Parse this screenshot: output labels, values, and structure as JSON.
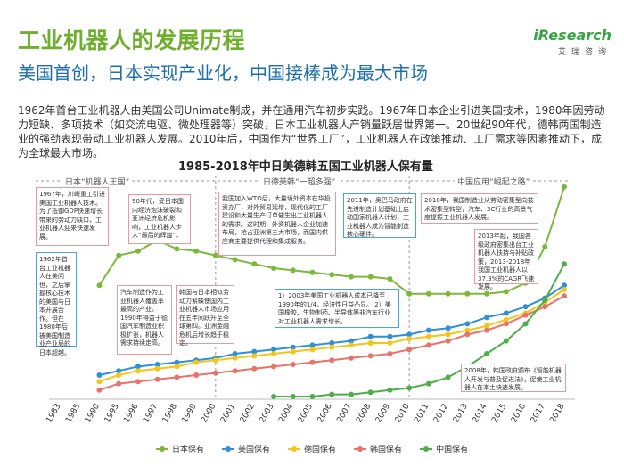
{
  "title": "工业机器人的发展历程",
  "subtitle": "美国首创，日本实现产业化，中国接棒成为最大市场",
  "intro": "1962年首台工业机器人由美国公司Unimate制成，并在通用汽车初步实践。1967年日本企业引进美国技术，1980年因劳动力短缺、多项技术（如交流电驱、微处理器等）突破，日本工业机器人产销量跃居世界第一。20世纪90年代，德韩两国制造业的强劲表现带动工业机器人发展。2010年后，中国作为“世界工厂”，工业机器人在政策推动、工厂需求等因素推动下，成为全球最大市场。",
  "logo": {
    "main": "iResearch",
    "sub": "艾瑞咨询"
  },
  "phases": [
    "日本“机器人王国”",
    "日德美韩“一超多强”",
    "中国应用“崛起之路”"
  ],
  "notes": [
    "1967年，川崎重工引进美国工业机器人技术。为了抵御GDP快速增长带来的劳动力缺口，工业机器人迎来快速发展。",
    "1962年首台工业机器人在美问世，之后掌握核心技术的美国与日本开展合作。但在1980年后被美国制造业产业局的日本超越。",
    "90年代，受日本国内经济泡沫破裂和亚洲经济危机影响，工业机器人步入“最后的辉煌”。",
    "汽车制造作为工业机器人覆盖率最高的产业。1990年得益于德国汽车制造业积极扩张，机器人需求持续走高。",
    "韩国与日本相似劳动力紧缺使国内工业机器人市场应用在五年间跃升至全球第四。亚洲金融危机后增长趋于稳定。",
    "我国加入WTO后，大量境外资本在华投资办厂，对外贸易延增，现代化的工厂建设和大量生产订单催生出工业机器人的需求。这时期，外资机器人企业加速布局，抢占亚洲第三大市场，而国内供应商主要提供代理和集成服务。",
    "2011年，奥巴马政府在先进制造计划基础上启动国家机器人计划，工业机器人成为智能制造核心硬件。",
    "2010年，我国制造业从劳动密集型向技术密集型转型，汽车、3C行业的高景气度提振工业机器人发展。",
    "2013年起，我国各级政府密集出台工业机器人扶持与补贴政策，2013-2018年我国工业机器人以37.3%的CAGR飞速发展。",
    "1）2003年美国工业机器人成本已降至1990年的1/4，经济性日益凸显。 2）美国橡胶、生物制药、半导体等非汽车行业对工业机器人需求增长。",
    "2008年，韩国政府颁布《智能机器人开发与普及促进法》，促使工业机器人在本土快速发展。"
  ],
  "chart_data": {
    "type": "line",
    "title": "1985-2018年中日美德韩五国工业机器人保有量",
    "categories": [
      "1983",
      "1985",
      "1990",
      "1995",
      "1996",
      "1997",
      "1998",
      "1999",
      "2000",
      "2001",
      "2002",
      "2003",
      "2004",
      "2005",
      "2006",
      "2007",
      "2008",
      "2009",
      "2010",
      "2011",
      "2012",
      "2013",
      "2014",
      "2015",
      "2016",
      "2017",
      "2018"
    ],
    "series": [
      {
        "name": "日本保有",
        "color": "#7cb83b",
        "values": [
          null,
          null,
          52,
          66,
          68,
          73,
          69,
          68,
          66,
          64,
          62,
          60,
          59,
          58,
          57,
          56,
          56,
          55,
          48,
          48,
          48,
          48,
          48,
          49,
          53,
          70,
          98
        ]
      },
      {
        "name": "美国保有",
        "color": "#2f8fd8",
        "values": [
          null,
          null,
          10,
          12,
          14,
          15,
          16,
          17,
          18,
          20,
          21,
          22,
          23,
          24,
          25,
          26,
          28,
          28,
          29,
          31,
          32,
          34,
          37,
          39,
          42,
          46,
          52
        ]
      },
      {
        "name": "德国保有",
        "color": "#f5c518",
        "values": [
          null,
          null,
          7,
          10,
          12,
          13,
          14,
          16,
          17,
          18,
          19,
          20,
          21,
          22,
          23,
          24,
          25,
          25,
          27,
          28,
          29,
          31,
          33,
          36,
          39,
          44,
          50
        ]
      },
      {
        "name": "韩国保有",
        "color": "#e8736a",
        "values": [
          null,
          null,
          3,
          6,
          7,
          8,
          9,
          10,
          11,
          12,
          13,
          14,
          15,
          16,
          17,
          18,
          19,
          20,
          22,
          24,
          26,
          29,
          31,
          34,
          38,
          42,
          47
        ]
      },
      {
        "name": "中国保有",
        "color": "#4fae4a",
        "values": [
          null,
          null,
          null,
          null,
          null,
          null,
          null,
          null,
          null,
          null,
          null,
          0,
          0,
          0,
          1,
          1,
          2,
          3,
          4,
          6,
          9,
          14,
          20,
          26,
          34,
          45,
          62
        ]
      }
    ],
    "grid": false,
    "legend": "bottom"
  }
}
